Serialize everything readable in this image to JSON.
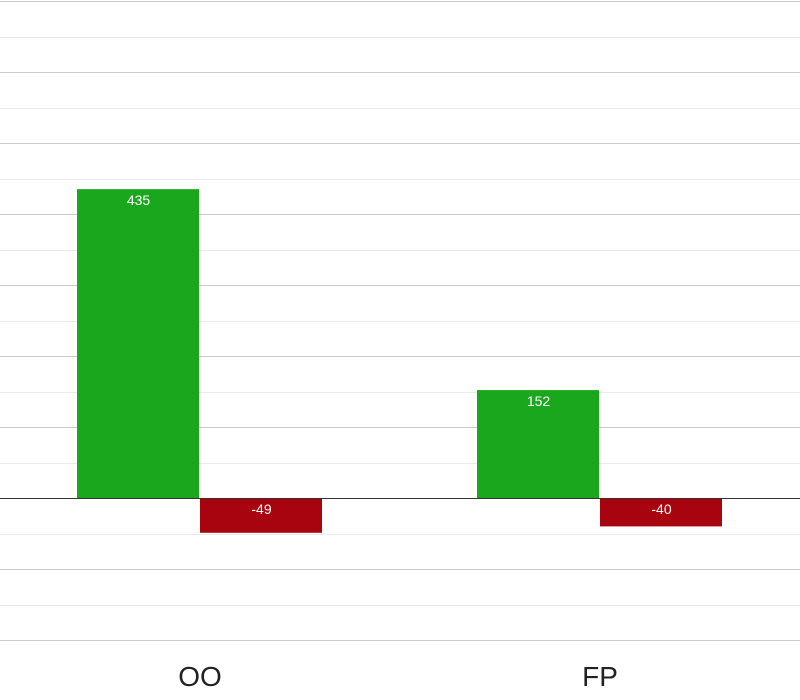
{
  "chart_data": {
    "type": "bar",
    "categories": [
      "OO",
      "FP"
    ],
    "series": [
      {
        "values": [
          435,
          152
        ],
        "color": "#1aa71d"
      },
      {
        "values": [
          -49,
          -40
        ],
        "color": "#a8040f"
      }
    ],
    "ylim": [
      -200,
      700
    ],
    "grid": true,
    "legend": "none"
  }
}
